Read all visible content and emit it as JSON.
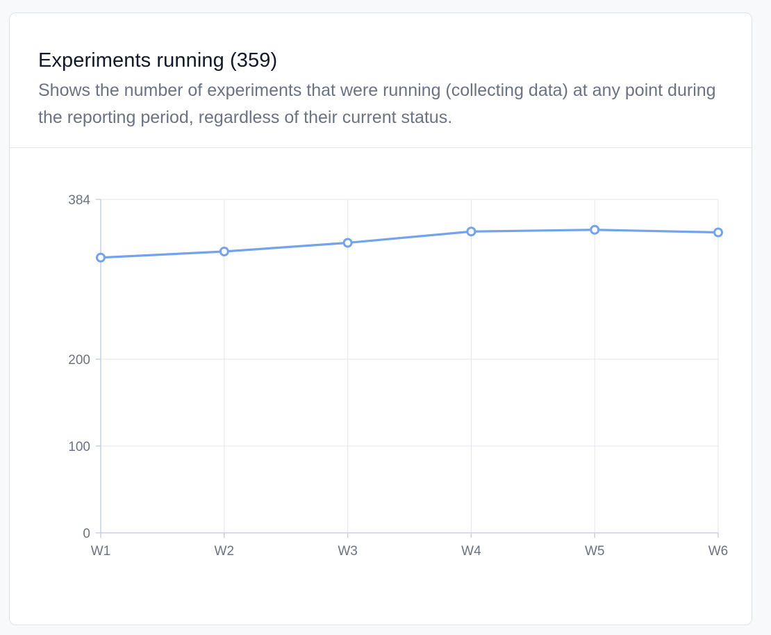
{
  "card": {
    "title": "Experiments running (359)",
    "description": "Shows the number of experiments that were running (collecting data) at any point during the reporting period, regardless of their current status."
  },
  "colors": {
    "line": "#72a3ec",
    "grid": "#e3e6ec",
    "axis": "#c8cfe0",
    "point_fill": "#ffffff"
  },
  "chart_data": {
    "type": "line",
    "categories": [
      "W1",
      "W2",
      "W3",
      "W4",
      "W5",
      "W6"
    ],
    "series": [
      {
        "values": [
          317,
          324,
          334,
          347,
          349,
          346
        ]
      }
    ],
    "yticks": [
      0,
      100,
      200,
      384
    ],
    "ylim": [
      0,
      384
    ],
    "grid": true,
    "legend": "none"
  }
}
